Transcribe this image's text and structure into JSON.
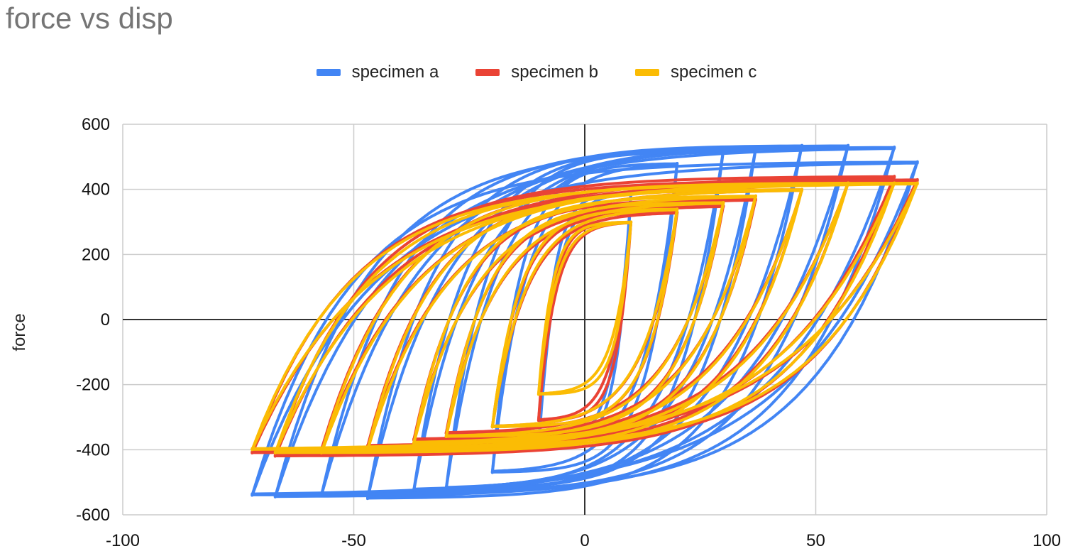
{
  "chart_data": {
    "type": "line",
    "title": "force vs disp",
    "xlabel": "",
    "ylabel": "force",
    "xlim": [
      -100,
      100
    ],
    "ylim": [
      -600,
      600
    ],
    "x_ticks": [
      "-100",
      "-50",
      "0",
      "50",
      "100"
    ],
    "y_ticks": [
      "600",
      "400",
      "200",
      "0",
      "-200",
      "-400",
      "-600"
    ],
    "grid": true,
    "legend_position": "top",
    "series": [
      {
        "name": "specimen a",
        "color": "#4285F4",
        "cycles": {
          "disp_amplitude": [
            10,
            20,
            30,
            37,
            47,
            57,
            67,
            72
          ],
          "force_max": [
            390,
            480,
            520,
            525,
            535,
            535,
            530,
            485
          ],
          "force_min": [
            -400,
            -470,
            -520,
            -525,
            -550,
            -540,
            -545,
            -540
          ]
        }
      },
      {
        "name": "specimen b",
        "color": "#EA4335",
        "cycles": {
          "disp_amplitude": [
            10,
            20,
            30,
            37,
            47,
            57,
            67,
            72
          ],
          "force_max": [
            300,
            330,
            350,
            370,
            400,
            420,
            440,
            430
          ],
          "force_min": [
            -310,
            -330,
            -350,
            -370,
            -390,
            -400,
            -420,
            -410
          ]
        }
      },
      {
        "name": "specimen c",
        "color": "#FBBC04",
        "cycles": {
          "disp_amplitude": [
            10,
            20,
            30,
            37,
            47,
            57,
            67,
            72
          ],
          "force_max": [
            300,
            340,
            360,
            380,
            400,
            420,
            420,
            420
          ],
          "force_min": [
            -230,
            -330,
            -360,
            -380,
            -400,
            -410,
            -410,
            -400
          ]
        }
      }
    ]
  }
}
